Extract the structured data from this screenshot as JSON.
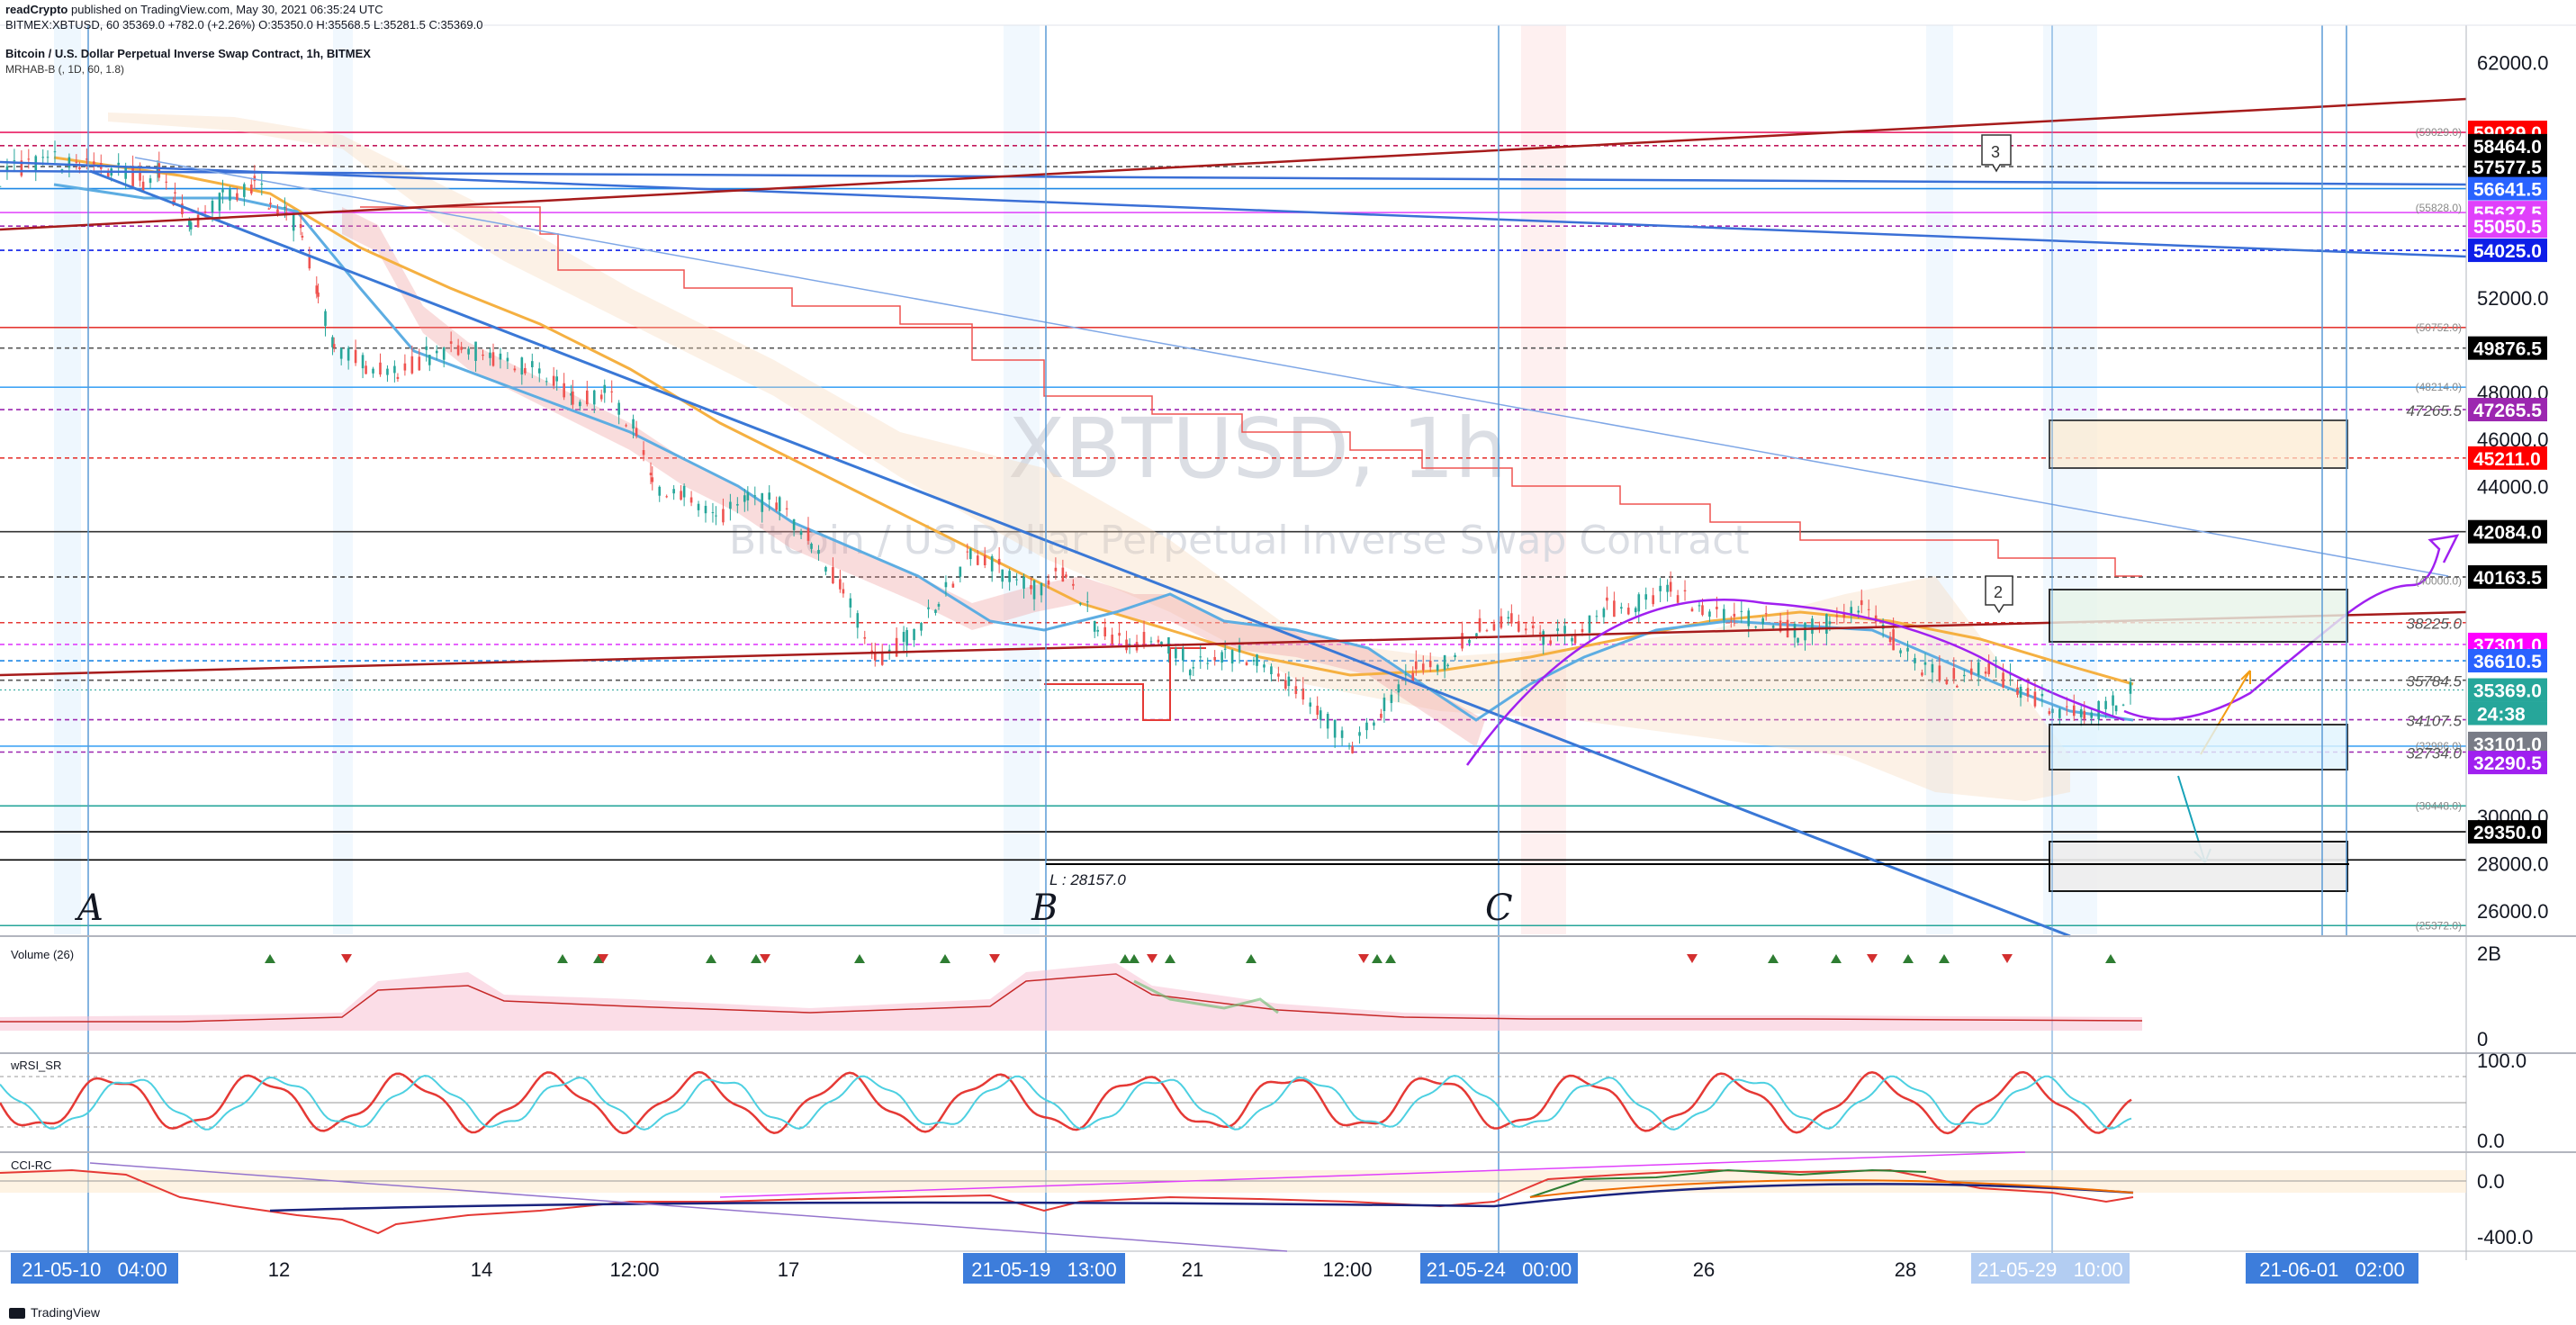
{
  "header": {
    "publisher": "readCrypto",
    "published_text": "published on TradingView.com, May 30, 2021 06:35:24 UTC",
    "symbol_line": "BITMEX:XBTUSD, 60  35369.0  +782.0 (+2.26%)  O:35350.0  H:35568.5  L:35281.5  C:35369.0",
    "title": "Bitcoin / U.S. Dollar Perpetual Inverse Swap Contract, 1h, BITMEX",
    "indicator": "MRHAB-B (, 1D, 60, 1.8)"
  },
  "watermark": {
    "symbol": "XBTUSD, 1h",
    "name": "Bitcoin / US Dollar Perpetual Inverse Swap Contract"
  },
  "footer": {
    "brand": "TradingView"
  },
  "panes": {
    "volume_label": "Volume (26)",
    "volume_ticks": [
      "2B",
      "0"
    ],
    "rsi_label": "wRSI_SR",
    "rsi_ticks": [
      "100.0",
      "0.0"
    ],
    "cci_label": "CCI-RC",
    "cci_ticks": [
      "0.0",
      "-400.0"
    ]
  },
  "chart_data": {
    "type": "candlestick",
    "symbol": "BITMEX:XBTUSD",
    "interval": "1h",
    "ohlc_last": {
      "open": 35350.0,
      "high": 35568.5,
      "low": 35281.5,
      "close": 35369.0,
      "change": 782.0,
      "change_pct": 2.26
    },
    "ylim": [
      25000,
      63500
    ],
    "y_ticks": [
      62000.0,
      52000.0,
      48000.0,
      46000.0,
      44000.0,
      30000.0,
      28000.0,
      26000.0
    ],
    "x_ticks": [
      "12",
      "14",
      "12:00",
      "17",
      "21",
      "12:00",
      "26",
      "28"
    ],
    "x_tags": [
      "21-05-10   04:00",
      "21-05-19   13:00",
      "21-05-24   00:00",
      "21-05-29   10:00",
      "21-06-01   02:00"
    ],
    "countdown": "24:38",
    "price_tags": [
      {
        "value": "59029.0",
        "bg": "#ff0000",
        "fg": "#ffffff"
      },
      {
        "value": "58464.0",
        "bg": "#000000",
        "fg": "#ffffff"
      },
      {
        "value": "57577.5",
        "bg": "#000000",
        "fg": "#ffffff"
      },
      {
        "value": "56641.5",
        "bg": "#2962ff",
        "fg": "#ffffff"
      },
      {
        "value": "55627.5",
        "bg": "#e040fb",
        "fg": "#ffffff"
      },
      {
        "value": "55050.5",
        "bg": "#e040fb",
        "fg": "#ffffff"
      },
      {
        "value": "54025.0",
        "bg": "#0d1ee8",
        "fg": "#ffffff"
      },
      {
        "value": "49876.5",
        "bg": "#000000",
        "fg": "#ffffff"
      },
      {
        "value": "47265.5",
        "bg": "#9c27b0",
        "fg": "#ffffff"
      },
      {
        "value": "45211.0",
        "bg": "#ff0000",
        "fg": "#ffffff"
      },
      {
        "value": "42084.0",
        "bg": "#000000",
        "fg": "#ffffff"
      },
      {
        "value": "40163.5",
        "bg": "#000000",
        "fg": "#ffffff"
      },
      {
        "value": "37301.0",
        "bg": "#ff00ff",
        "fg": "#ffffff"
      },
      {
        "value": "36610.5",
        "bg": "#2962ff",
        "fg": "#ffffff"
      },
      {
        "value": "35369.0",
        "bg": "#26a69a",
        "fg": "#ffffff"
      },
      {
        "value": "33101.0",
        "bg": "#787b86",
        "fg": "#ffffff"
      },
      {
        "value": "32290.5",
        "bg": "#a020f0",
        "fg": "#ffffff"
      },
      {
        "value": "29350.0",
        "bg": "#000000",
        "fg": "#ffffff"
      }
    ],
    "levels": [
      {
        "value": 59029.0,
        "color": "#e91e63",
        "style": "solid"
      },
      {
        "value": 58464.0,
        "color": "#c2185b",
        "style": "dash"
      },
      {
        "value": 57577.5,
        "color": "#555555",
        "style": "dash"
      },
      {
        "value": 56641.5,
        "color": "#1e88e5",
        "style": "solid"
      },
      {
        "value": 55627.5,
        "color": "#e040fb",
        "style": "solid"
      },
      {
        "value": 55050.5,
        "color": "#9c27b0",
        "style": "dash"
      },
      {
        "value": 54025.0,
        "color": "#0d1ee8",
        "style": "dash"
      },
      {
        "value": 50752.0,
        "color": "#e53935",
        "style": "solid"
      },
      {
        "value": 49876.5,
        "color": "#555555",
        "style": "dash"
      },
      {
        "value": 48214.0,
        "color": "#42a5f5",
        "style": "solid"
      },
      {
        "value": 47265.5,
        "color": "#9c27b0",
        "style": "dash"
      },
      {
        "value": 45211.0,
        "color": "#e53935",
        "style": "dash"
      },
      {
        "value": 42084.0,
        "color": "#333333",
        "style": "solid"
      },
      {
        "value": 40163.5,
        "color": "#333333",
        "style": "dash"
      },
      {
        "value": 38225.0,
        "color": "#e53935",
        "style": "dash"
      },
      {
        "value": 37301.0,
        "color": "#e040fb",
        "style": "dash"
      },
      {
        "value": 36610.5,
        "color": "#1e88e5",
        "style": "dash"
      },
      {
        "value": 35784.5,
        "color": "#555555",
        "style": "dash"
      },
      {
        "value": 34107.5,
        "color": "#9c27b0",
        "style": "dash"
      },
      {
        "value": 32986.0,
        "color": "#42a5f5",
        "style": "solid"
      },
      {
        "value": 32734.0,
        "color": "#9c27b0",
        "style": "dash"
      },
      {
        "value": 30448.0,
        "color": "#26a69a",
        "style": "solid"
      },
      {
        "value": 29350.0,
        "color": "#000000",
        "style": "solid"
      },
      {
        "value": 28157.0,
        "color": "#000000",
        "style": "solid"
      },
      {
        "value": 25372.0,
        "color": "#26a69a",
        "style": "solid"
      }
    ],
    "level_labels": [
      "59029.0",
      "55828.0",
      "50752.0",
      "48214.0",
      "47265.5",
      "40000.0",
      "38225.0",
      "35784.5",
      "34107.5",
      "32986.0",
      "32734.0",
      "30448.0",
      "25372.0"
    ],
    "low_label": "L : 28157.0",
    "wave_labels": [
      "A",
      "B",
      "C"
    ],
    "callouts": [
      "3",
      "2"
    ],
    "price_path": [
      [
        0,
        57200
      ],
      [
        3,
        57900
      ],
      [
        5,
        57600
      ],
      [
        7,
        57500
      ],
      [
        9,
        56900
      ],
      [
        10,
        57300
      ],
      [
        11,
        56200
      ],
      [
        12,
        55200
      ],
      [
        14,
        56200
      ],
      [
        16,
        56800
      ],
      [
        17,
        56100
      ],
      [
        18,
        55500
      ],
      [
        19,
        54800
      ],
      [
        20,
        52000
      ],
      [
        21,
        50000
      ],
      [
        23,
        49200
      ],
      [
        25,
        48800
      ],
      [
        27,
        49600
      ],
      [
        29,
        50000
      ],
      [
        31,
        49500
      ],
      [
        33,
        49100
      ],
      [
        35,
        48400
      ],
      [
        36,
        47600
      ],
      [
        38,
        48000
      ],
      [
        40,
        46400
      ],
      [
        41,
        44000
      ],
      [
        43,
        43800
      ],
      [
        45,
        42500
      ],
      [
        47,
        43400
      ],
      [
        49,
        43300
      ],
      [
        51,
        41700
      ],
      [
        53,
        39600
      ],
      [
        55,
        36600
      ],
      [
        57,
        37500
      ],
      [
        59,
        39200
      ],
      [
        61,
        41300
      ],
      [
        63,
        40400
      ],
      [
        65,
        39600
      ],
      [
        67,
        40500
      ],
      [
        69,
        38000
      ],
      [
        71,
        37200
      ],
      [
        73,
        37700
      ],
      [
        75,
        36200
      ],
      [
        77,
        36900
      ],
      [
        79,
        36800
      ],
      [
        81,
        35600
      ],
      [
        83,
        34300
      ],
      [
        85,
        33100
      ],
      [
        87,
        34600
      ],
      [
        89,
        36200
      ],
      [
        91,
        36700
      ],
      [
        93,
        38200
      ],
      [
        95,
        38400
      ],
      [
        97,
        37600
      ],
      [
        99,
        37700
      ],
      [
        101,
        38900
      ],
      [
        103,
        39000
      ],
      [
        105,
        39600
      ],
      [
        107,
        38900
      ],
      [
        109,
        38200
      ],
      [
        111,
        38500
      ],
      [
        113,
        37800
      ],
      [
        115,
        38200
      ],
      [
        117,
        38800
      ],
      [
        119,
        37500
      ],
      [
        121,
        36200
      ],
      [
        123,
        35900
      ],
      [
        125,
        36300
      ],
      [
        127,
        35300
      ],
      [
        129,
        34600
      ],
      [
        131,
        34200
      ],
      [
        133,
        34900
      ],
      [
        134,
        35369
      ]
    ],
    "x_domain": [
      0,
      155
    ]
  }
}
